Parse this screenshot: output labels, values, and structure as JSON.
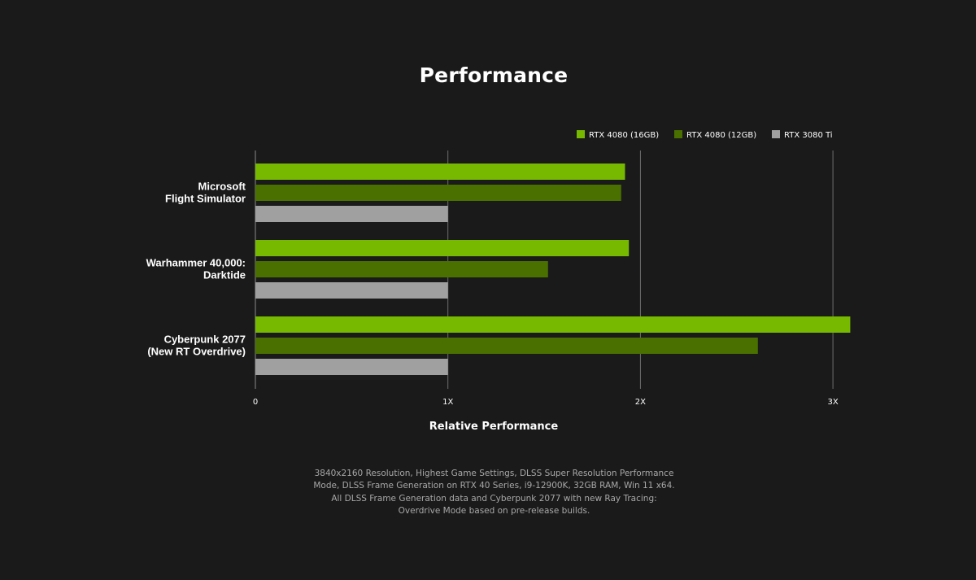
{
  "chart_data": {
    "type": "bar",
    "orientation": "horizontal",
    "title": "Performance",
    "xlabel": "Relative Performance",
    "ylabel": "",
    "categories": [
      [
        "Microsoft",
        "Flight Simulator"
      ],
      [
        "Warhammer 40,000:",
        "Darktide"
      ],
      [
        "Cyberpunk 2077",
        "(New RT Overdrive)"
      ]
    ],
    "series": [
      {
        "name": "RTX 4080 (16GB)",
        "color": "#76b900",
        "values": [
          1.92,
          1.94,
          3.09
        ]
      },
      {
        "name": "RTX 4080 (12GB)",
        "color": "#4a7000",
        "values": [
          1.9,
          1.52,
          2.61
        ]
      },
      {
        "name": "RTX 3080 Ti",
        "color": "#a0a0a0",
        "values": [
          1.0,
          1.0,
          1.0
        ]
      }
    ],
    "xlim": [
      0,
      3
    ],
    "xticks": [
      {
        "value": 0,
        "label": "0"
      },
      {
        "value": 1,
        "label": "1X"
      },
      {
        "value": 2,
        "label": "2X"
      },
      {
        "value": 3,
        "label": "3X"
      }
    ],
    "grid": true,
    "legend_position": "top-right"
  },
  "footnote": "3840x2160 Resolution, Highest Game Settings, DLSS Super Resolution Performance Mode, DLSS Frame Generation on RTX 40 Series, i9-12900K, 32GB RAM, Win 11 x64. All DLSS Frame Generation data and Cyberpunk 2077 with new Ray Tracing: Overdrive Mode based on pre-release builds."
}
